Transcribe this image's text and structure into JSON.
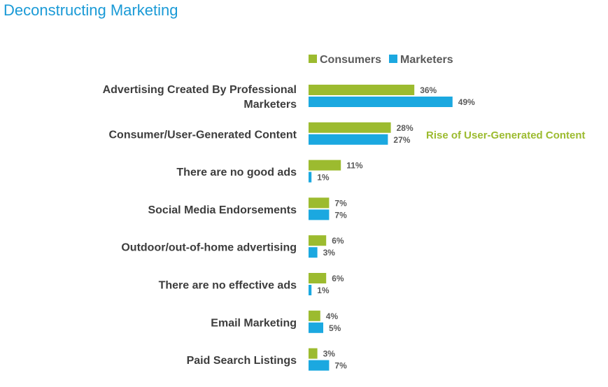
{
  "page": {
    "title": "Deconstructing Marketing"
  },
  "colors": {
    "title": "#1a9ad6",
    "consumers": "#9cbb2f",
    "marketers": "#1ba8e0",
    "annotation": "#9cbb2f"
  },
  "chart_data": {
    "type": "bar",
    "orientation": "horizontal",
    "title": "Deconstructing Marketing",
    "categories": [
      [
        "Advertising Created By Professional",
        "Marketers"
      ],
      [
        "Consumer/User-Generated Content"
      ],
      [
        "There are no good ads"
      ],
      [
        "Social Media Endorsements"
      ],
      [
        "Outdoor/out-of-home advertising"
      ],
      [
        "There are no effective ads"
      ],
      [
        "Email Marketing"
      ],
      [
        "Paid Search Listings"
      ]
    ],
    "series": [
      {
        "name": "Consumers",
        "color": "#9cbb2f",
        "values": [
          36,
          28,
          11,
          7,
          6,
          6,
          4,
          3
        ]
      },
      {
        "name": "Marketers",
        "color": "#1ba8e0",
        "values": [
          49,
          27,
          1,
          7,
          3,
          1,
          5,
          7
        ]
      }
    ],
    "value_suffix": "%",
    "legend_position": "top-right",
    "grid": false,
    "annotation": {
      "text": "Rise of User-Generated Content",
      "category_index": 1
    }
  }
}
